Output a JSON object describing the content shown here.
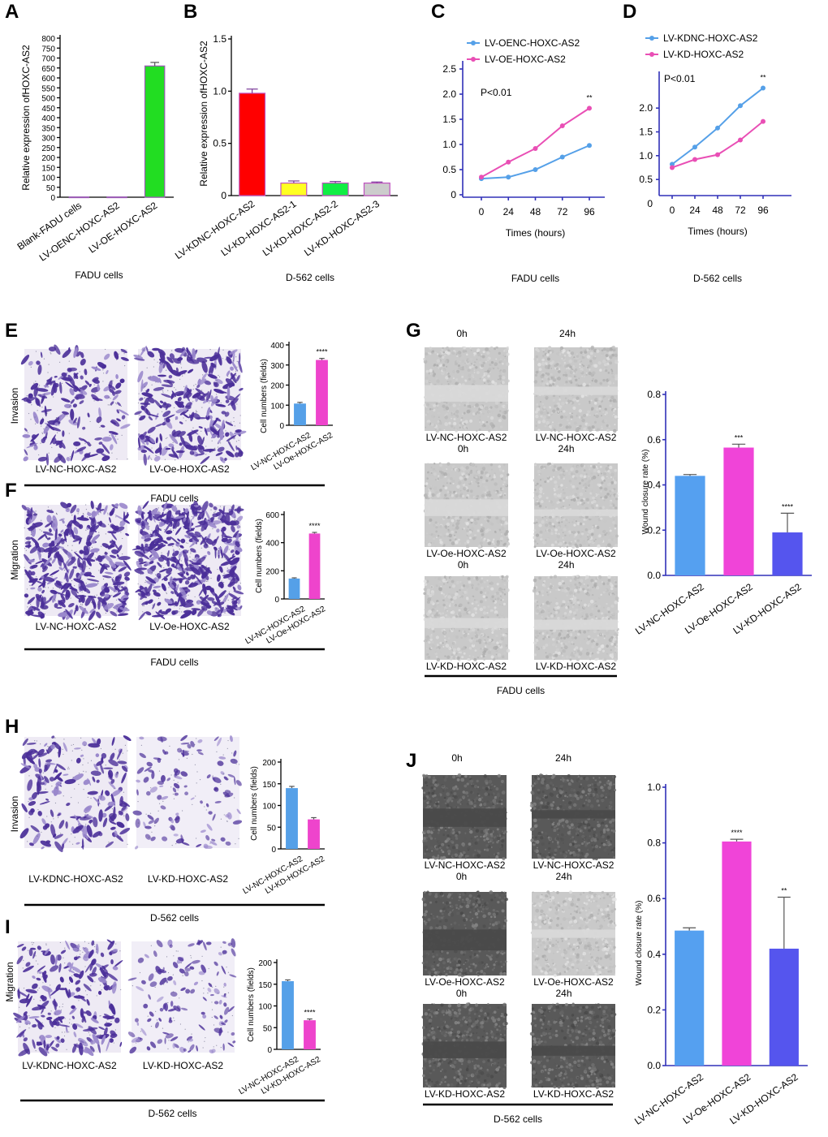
{
  "chart_data": [
    {
      "panel": "A",
      "type": "bar",
      "categories": [
        "Blank-FADU cells",
        "LV-OENC-HOXC-AS2",
        "LV-OE-HOXC-AS2"
      ],
      "values": [
        1,
        1,
        660
      ],
      "errors": [
        0,
        0,
        18
      ],
      "colors": [
        "#e8e8e8",
        "#e8e8e8",
        "#22dd22"
      ],
      "ylabel": "Relative expression ofHOXC-AS2",
      "yticks": [
        0,
        50,
        100,
        150,
        200,
        250,
        300,
        350,
        400,
        450,
        500,
        550,
        600,
        650,
        700,
        750,
        800
      ],
      "ylim": [
        0,
        800
      ],
      "xlabel": "FADU cells"
    },
    {
      "panel": "B",
      "type": "bar",
      "categories": [
        "LV-KDNC-HOXC-AS2",
        "LV-KD-HOXC-AS2-1",
        "LV-KD-HOXC-AS2-2",
        "LV-KD-HOXC-AS2-3"
      ],
      "values": [
        0.98,
        0.12,
        0.12,
        0.12
      ],
      "errors": [
        0.04,
        0.02,
        0.015,
        0.01
      ],
      "colors": [
        "#ff0000",
        "#ffff22",
        "#11ee44",
        "#cccccc"
      ],
      "ylabel": "Relative expression ofHOXC-AS2",
      "yticks": [
        0,
        0.5,
        1.0,
        1.5
      ],
      "ytick_labels": [
        "0",
        "0.5",
        "1.0",
        "1.5"
      ],
      "ylim": [
        0,
        1.5
      ],
      "xlabel": "D-562 cells"
    },
    {
      "panel": "C",
      "type": "line",
      "x": [
        0,
        24,
        48,
        72,
        96
      ],
      "series": [
        {
          "name": "LV-OENC-HOXC-AS2",
          "values": [
            0.32,
            0.35,
            0.5,
            0.75,
            0.98
          ],
          "color": "#55a0e8"
        },
        {
          "name": "LV-OE-HOXC-AS2",
          "values": [
            0.35,
            0.65,
            0.92,
            1.37,
            1.72
          ],
          "color": "#e94fb5"
        }
      ],
      "yticks": [
        0,
        0.5,
        1.0,
        1.5,
        2.0,
        2.5
      ],
      "ytick_labels": [
        "0",
        "0.5",
        "1.0",
        "1.5",
        "2.0",
        "2.5"
      ],
      "ylim": [
        0,
        2.5
      ],
      "xlabel": "Times (hours)",
      "annotation": "P<0.01",
      "sig": "**",
      "caption": "FADU cells"
    },
    {
      "panel": "D",
      "type": "line",
      "x": [
        0,
        24,
        48,
        72,
        96
      ],
      "series": [
        {
          "name": "LV-KDNC-HOXC-AS2",
          "values": [
            0.82,
            1.18,
            1.58,
            2.05,
            2.42
          ],
          "color": "#55a0e8"
        },
        {
          "name": "LV-KD-HOXC-AS2",
          "values": [
            0.75,
            0.92,
            1.02,
            1.33,
            1.72
          ],
          "color": "#e94fb5"
        }
      ],
      "yticks": [
        0.5,
        1.0,
        1.5,
        2.0
      ],
      "ytick_labels": [
        "0.5",
        "1.0",
        "1.5",
        "2.0"
      ],
      "y_zero_label": "0",
      "ylim": [
        0.4,
        2.6
      ],
      "xlabel": "Times (hours)",
      "annotation": "P<0.01",
      "sig": "**",
      "caption": "D-562 cells"
    },
    {
      "panel": "E",
      "type": "bar",
      "row_label": "Invasion",
      "categories": [
        "LV-NC-HOXC-AS2",
        "LV-Oe-HOXC-AS2"
      ],
      "values": [
        108,
        325
      ],
      "errors": [
        6,
        8
      ],
      "colors": [
        "#55a0e8",
        "#ee44cc"
      ],
      "yticks": [
        0,
        100,
        200,
        300,
        400
      ],
      "ylim": [
        0,
        400
      ],
      "ylabel": "Cell numbers  (fields)",
      "sig": "****",
      "image_captions": [
        "LV-NC-HOXC-AS2",
        "LV-Oe-HOXC-AS2"
      ],
      "caption": "FADU cells"
    },
    {
      "panel": "F",
      "type": "bar",
      "row_label": "Migration",
      "categories": [
        "LV-NC-HOXC-AS2",
        "LV-Oe-HOXC-AS2"
      ],
      "values": [
        145,
        465
      ],
      "errors": [
        5,
        8
      ],
      "colors": [
        "#55a0e8",
        "#ee44cc"
      ],
      "yticks": [
        0,
        200,
        400,
        600
      ],
      "ylim": [
        0,
        600
      ],
      "ylabel": "Cell numbers  (fields)",
      "sig": "****",
      "image_captions": [
        "LV-NC-HOXC-AS2",
        "LV-Oe-HOXC-AS2"
      ],
      "caption": "FADU cells"
    },
    {
      "panel": "G",
      "type": "bar",
      "categories": [
        "LV-NC-HOXC-AS2",
        "LV-Oe-HOXC-AS2",
        "LV-KD-HOXC-AS2"
      ],
      "values": [
        0.44,
        0.565,
        0.19
      ],
      "errors": [
        0.006,
        0.015,
        0.085
      ],
      "colors": [
        "#55a0f0",
        "#f044d8",
        "#5555ee"
      ],
      "yticks": [
        0,
        0.2,
        0.4,
        0.6,
        0.8
      ],
      "ytick_labels": [
        "0.0",
        "0.2",
        "0.4",
        "0.6",
        "0.8"
      ],
      "ylim": [
        0,
        0.8
      ],
      "ylabel": "Wound closure rate   (%)",
      "sig": [
        "",
        "***",
        "****"
      ],
      "caption": "FADU cells",
      "image_headers": [
        "0h",
        "24h"
      ],
      "image_rows": [
        {
          "left": "LV-NC-HOXC-AS2",
          "right": "LV-NC-HOXC-AS2",
          "time_left": "0h",
          "time_right": "24h"
        },
        {
          "left": "LV-Oe-HOXC-AS2",
          "right": "LV-Oe-HOXC-AS2",
          "time_left": "0h",
          "time_right": "24h"
        },
        {
          "left": "LV-KD-HOXC-AS2",
          "right": "LV-KD-HOXC-AS2"
        }
      ]
    },
    {
      "panel": "H",
      "type": "bar",
      "row_label": "Invasion",
      "categories": [
        "LV-NC-HOXC-AS2",
        "LV-KD-HOXC-AS2"
      ],
      "values": [
        140,
        68
      ],
      "errors": [
        4,
        4
      ],
      "colors": [
        "#55a0e8",
        "#ee44cc"
      ],
      "yticks": [
        0,
        50,
        100,
        150,
        200
      ],
      "ylim": [
        0,
        200
      ],
      "ylabel": "Cell numbers  (fields)",
      "sig": "",
      "image_captions": [
        "LV-KDNC-HOXC-AS2",
        "LV-KD-HOXC-AS2"
      ],
      "caption": "D-562 cells"
    },
    {
      "panel": "I",
      "type": "bar",
      "row_label": "Migration",
      "categories": [
        "LV-NC-HOXC-AS2",
        "LV-KD-HOXC-AS2"
      ],
      "values": [
        157,
        67
      ],
      "errors": [
        3,
        3
      ],
      "colors": [
        "#55a0e8",
        "#ee44cc"
      ],
      "yticks": [
        0,
        50,
        100,
        150,
        200
      ],
      "ylim": [
        0,
        200
      ],
      "ylabel": "Cell numbers  (fields)",
      "sig": "****",
      "image_captions": [
        "LV-KDNC-HOXC-AS2",
        "LV-KD-HOXC-AS2"
      ],
      "caption": "D-562 cells"
    },
    {
      "panel": "J",
      "type": "bar",
      "categories": [
        "LV-NC-HOXC-AS2",
        "LV-Oe-HOXC-AS2",
        "LV-KD-HOXC-AS2"
      ],
      "values": [
        0.485,
        0.805,
        0.42
      ],
      "errors": [
        0.01,
        0.008,
        0.185
      ],
      "colors": [
        "#55a0f0",
        "#f044d8",
        "#5555ee"
      ],
      "yticks": [
        0,
        0.2,
        0.4,
        0.6,
        0.8,
        1.0
      ],
      "ytick_labels": [
        "0.0",
        "0.2",
        "0.4",
        "0.6",
        "0.8",
        "1.0"
      ],
      "ylim": [
        0,
        1.0
      ],
      "ylabel": "Wound closure rate   (%)",
      "sig": [
        "",
        "****",
        "**"
      ],
      "caption": "D-562 cells",
      "image_headers": [
        "0h",
        "24h"
      ],
      "image_rows": [
        {
          "left": "LV-NC-HOXC-AS2",
          "right": "LV-NC-HOXC-AS2",
          "time_left": "0h",
          "time_right": "24h"
        },
        {
          "left": "LV-Oe-HOXC-AS2",
          "right": "LV-Oe-HOXC-AS2",
          "time_left": "0h",
          "time_right": "24h"
        },
        {
          "left": "LV-KD-HOXC-AS2",
          "right": "LV-KD-HOXC-AS2"
        }
      ]
    }
  ],
  "colors": {
    "cell_stain": "#4b2f99",
    "cell_stain_light": "#9a88cc",
    "wound_field_light": "#c9c9c9",
    "wound_field_dark": "#595959",
    "axis_blue": "#3030b8"
  }
}
